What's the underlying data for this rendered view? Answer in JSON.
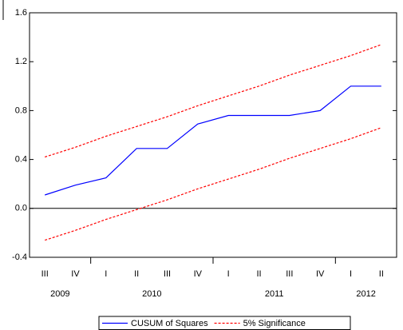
{
  "chart_data": {
    "type": "line",
    "categories": [
      "III",
      "IV",
      "I",
      "II",
      "III",
      "IV",
      "I",
      "II",
      "III",
      "IV",
      "I",
      "II"
    ],
    "years": [
      "2009",
      "2010",
      "2011",
      "2012"
    ],
    "series": [
      {
        "name": "CUSUM of Squares",
        "color": "#0000ff",
        "style": "solid",
        "values": [
          0.11,
          0.19,
          0.25,
          0.49,
          0.49,
          0.69,
          0.76,
          0.76,
          0.76,
          0.8,
          1.0,
          1.0
        ]
      },
      {
        "name": "5% Significance",
        "color": "#ff0000",
        "style": "dashed",
        "values": [
          0.42,
          0.5,
          0.59,
          0.67,
          0.75,
          0.84,
          0.92,
          1.0,
          1.09,
          1.17,
          1.25,
          1.34
        ]
      },
      {
        "name": null,
        "color": "#ff0000",
        "style": "dashed",
        "values": [
          -0.26,
          -0.18,
          -0.09,
          -0.01,
          0.07,
          0.16,
          0.24,
          0.32,
          0.41,
          0.49,
          0.57,
          0.66
        ]
      }
    ],
    "ylim": [
      -0.4,
      1.6
    ],
    "yticks": [
      -0.4,
      {
        "value": 0,
        "label": "0.0"
      },
      0.4,
      0.8,
      1.2,
      1.6
    ],
    "zero_line": true
  }
}
